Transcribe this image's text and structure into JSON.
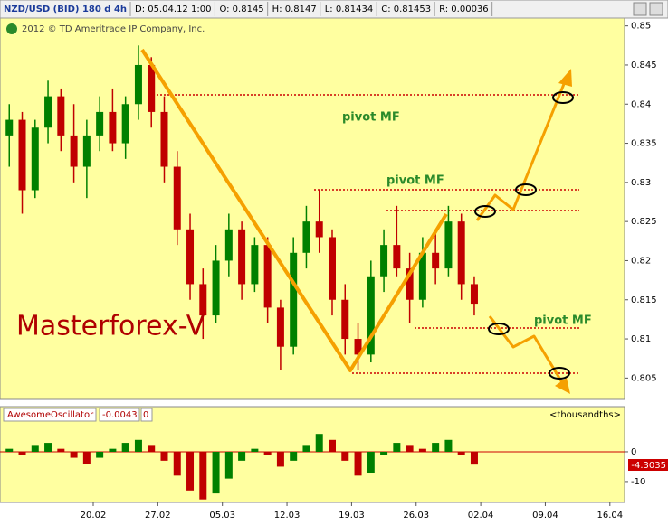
{
  "header": [
    "NZD/USD (BID) 180 d 4h",
    "D: 05.04.12 1:00",
    "O: 0.8145",
    "H: 0.8147",
    "L: 0.81434",
    "C: 0.81453",
    "R: 0.00036"
  ],
  "copyright": "2012 © TD Ameritrade IP Company, Inc.",
  "annotations": {
    "pivot_1": "pivot MF",
    "pivot_2": "pivot MF",
    "pivot_3": "pivot MF",
    "brand": "Masterforex-V"
  },
  "chart_data": [
    {
      "type": "candlestick",
      "up_color": "#008000",
      "down_color": "#c00000",
      "x": [
        "09.02",
        "10.02",
        "13.02",
        "14.02",
        "15.02",
        "16.02",
        "17.02",
        "20.02",
        "21.02",
        "22.02",
        "23.02",
        "24.02",
        "27.02",
        "28.02",
        "29.02",
        "01.03",
        "02.03",
        "05.03",
        "06.03",
        "07.03",
        "08.03",
        "09.03",
        "12.03",
        "13.03",
        "14.03",
        "15.03",
        "16.03",
        "19.03",
        "20.03",
        "21.03",
        "22.03",
        "23.03",
        "26.03",
        "27.03",
        "28.03",
        "29.03",
        "30.03"
      ],
      "open": [
        0.836,
        0.838,
        0.829,
        0.837,
        0.841,
        0.836,
        0.832,
        0.836,
        0.839,
        0.835,
        0.84,
        0.845,
        0.839,
        0.832,
        0.824,
        0.817,
        0.813,
        0.82,
        0.824,
        0.817,
        0.822,
        0.814,
        0.809,
        0.821,
        0.825,
        0.823,
        0.815,
        0.81,
        0.808,
        0.818,
        0.822,
        0.819,
        0.815,
        0.821,
        0.819,
        0.825,
        0.817
      ],
      "high": [
        0.84,
        0.839,
        0.838,
        0.843,
        0.842,
        0.84,
        0.838,
        0.841,
        0.842,
        0.841,
        0.8475,
        0.846,
        0.841,
        0.834,
        0.826,
        0.819,
        0.822,
        0.826,
        0.825,
        0.823,
        0.823,
        0.815,
        0.823,
        0.827,
        0.829,
        0.824,
        0.817,
        0.812,
        0.82,
        0.824,
        0.827,
        0.821,
        0.823,
        0.824,
        0.827,
        0.826,
        0.818
      ],
      "low": [
        0.832,
        0.826,
        0.828,
        0.835,
        0.834,
        0.83,
        0.828,
        0.834,
        0.834,
        0.833,
        0.838,
        0.837,
        0.83,
        0.822,
        0.815,
        0.81,
        0.812,
        0.818,
        0.815,
        0.816,
        0.812,
        0.806,
        0.808,
        0.819,
        0.821,
        0.813,
        0.808,
        0.806,
        0.807,
        0.816,
        0.818,
        0.812,
        0.814,
        0.817,
        0.818,
        0.815,
        0.813
      ],
      "close": [
        0.838,
        0.829,
        0.837,
        0.841,
        0.836,
        0.832,
        0.836,
        0.839,
        0.835,
        0.84,
        0.845,
        0.839,
        0.832,
        0.824,
        0.817,
        0.813,
        0.82,
        0.824,
        0.817,
        0.822,
        0.814,
        0.809,
        0.821,
        0.825,
        0.823,
        0.815,
        0.81,
        0.808,
        0.818,
        0.822,
        0.819,
        0.815,
        0.821,
        0.819,
        0.825,
        0.817,
        0.8145
      ],
      "ylim": [
        0.8025,
        0.851
      ],
      "yticks": [
        0.85,
        0.845,
        0.84,
        0.835,
        0.83,
        0.825,
        0.82,
        0.815,
        0.81,
        0.805
      ],
      "xticks": [
        "20.02",
        "27.02",
        "05.03",
        "12.03",
        "19.03",
        "26.03",
        "02.04",
        "09.04",
        "16.04"
      ]
    },
    {
      "type": "oscillator",
      "name": "AwesomeOscillator",
      "header_value": "-0.0043",
      "header_param": "0",
      "units": "<thousandths>",
      "up_color": "#008000",
      "down_color": "#c00000",
      "values": [
        1,
        -1,
        2,
        3,
        1,
        -2,
        -4,
        -2,
        1,
        3,
        4,
        2,
        -3,
        -8,
        -13,
        -16,
        -14,
        -9,
        -3,
        1,
        -1,
        -5,
        -3,
        2,
        6,
        4,
        -3,
        -8,
        -7,
        -1,
        3,
        2,
        1,
        3,
        4,
        -1,
        -4.3035
      ],
      "current_label": "-4.3035",
      "ylim": [
        -16.7,
        9.7
      ],
      "yticks": [
        0,
        -10
      ]
    }
  ]
}
